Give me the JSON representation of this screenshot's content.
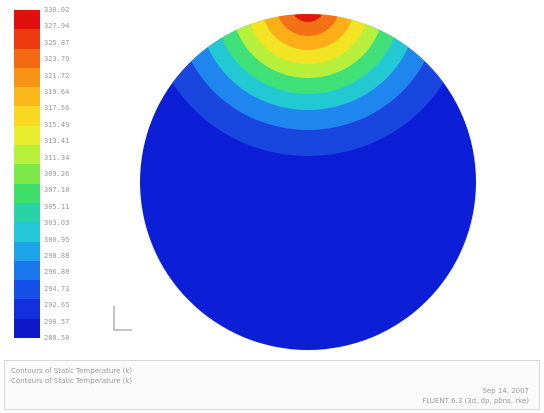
{
  "legend": {
    "colors": [
      "#e0100e",
      "#ee3a10",
      "#f36a12",
      "#f99316",
      "#fbb81a",
      "#f8d821",
      "#e8ee2e",
      "#b9f03c",
      "#7ee84a",
      "#3fe06a",
      "#2ad3a6",
      "#24c6d8",
      "#1fa4ec",
      "#1a78ec",
      "#1550e6",
      "#1230dc",
      "#0e18c8"
    ],
    "values": [
      "330.02",
      "327.94",
      "325.87",
      "323.79",
      "321.72",
      "319.64",
      "317.56",
      "315.49",
      "313.41",
      "311.34",
      "309.26",
      "307.18",
      "305.11",
      "303.03",
      "300.95",
      "298.88",
      "296.80",
      "294.73",
      "292.65",
      "290.57",
      "288.50"
    ]
  },
  "contour": {
    "background": "#0d1fd6",
    "band_colors": [
      "#1a46e0",
      "#1f86f0",
      "#22c8d2",
      "#40e078",
      "#b6f03a",
      "#f2e422",
      "#fbae18",
      "#f47014",
      "#e3160e"
    ]
  },
  "axes_label": "Z  X",
  "footer": {
    "line1": "Contours of Static Temperature (k)",
    "line2": "Sep 14, 2007",
    "line3": "FLUENT 6.3 (3d, dp, pbns, rke)",
    "line_left": "Contours of Static Temperature (k)"
  }
}
